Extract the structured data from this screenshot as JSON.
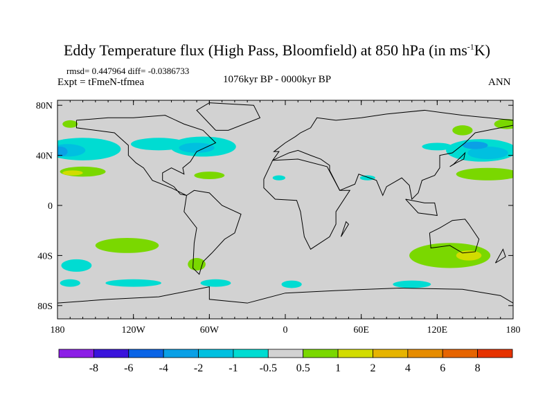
{
  "chart_data": {
    "type": "heatmap",
    "title_main": "Eddy Temperature flux (High Pass, Bloomfield) at 850 hPa (in ms",
    "title_sup": "-1",
    "title_end": "K)",
    "stats": "rmsd= 0.447964 diff= -0.0386733",
    "expt": "Expt = tFmeN-tfmea",
    "period": "1076kyr BP - 0000kyr BP",
    "season": "ANN",
    "x_ticks": [
      "180",
      "120W",
      "60W",
      "0",
      "60E",
      "120E",
      "180"
    ],
    "x_tick_values": [
      -180,
      -120,
      -60,
      0,
      60,
      120,
      180
    ],
    "y_ticks": [
      "80N",
      "40N",
      "0",
      "40S",
      "80S"
    ],
    "y_tick_values": [
      80,
      40,
      0,
      -40,
      -80
    ],
    "xlim": [
      -180,
      180
    ],
    "ylim": [
      -90,
      90
    ],
    "colorbar": {
      "levels": [
        "-8",
        "-6",
        "-4",
        "-2",
        "-1",
        "-0.5",
        "0.5",
        "1",
        "2",
        "4",
        "6",
        "8"
      ],
      "colors": [
        "#8c1ee6",
        "#3a14dc",
        "#0a64e6",
        "#0aa0e6",
        "#00c0e0",
        "#00dcd2",
        "#d2d2d2",
        "#7ad800",
        "#d2dc00",
        "#e6b400",
        "#e68c00",
        "#e66400",
        "#e63200"
      ]
    },
    "anomaly_regions": [
      {
        "name": "north-pacific-east",
        "lon": -160,
        "lat": 45,
        "level": "-2 to -1"
      },
      {
        "name": "north-pacific-east-core",
        "lon": -170,
        "lat": 43,
        "level": "-4 to -2"
      },
      {
        "name": "north-atlantic",
        "lon": -65,
        "lat": 45,
        "level": "-1"
      },
      {
        "name": "north-pacific-west",
        "lon": 150,
        "lat": 42,
        "level": "-2"
      },
      {
        "name": "subtropical-pacific",
        "lon": -165,
        "lat": 27,
        "level": "1 to 2"
      },
      {
        "name": "subtropical-nw-pacific",
        "lon": 170,
        "lat": 25,
        "level": "1"
      },
      {
        "name": "south-pacific",
        "lon": -125,
        "lat": -33,
        "level": "1"
      },
      {
        "name": "australia",
        "lon": 135,
        "lat": -38,
        "level": "1 to 2"
      },
      {
        "name": "south-indian",
        "lon": 100,
        "lat": -63,
        "level": "-1"
      },
      {
        "name": "southern-ocean-pacific",
        "lon": -120,
        "lat": -62,
        "level": "-1"
      }
    ]
  }
}
